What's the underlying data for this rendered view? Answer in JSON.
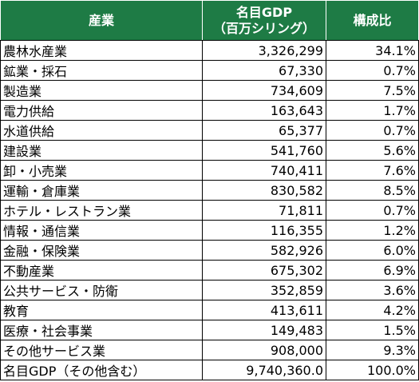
{
  "table": {
    "headers": {
      "industry": "産業",
      "gdp_line1": "名目GDP",
      "gdp_line2": "（百万シリング）",
      "share": "構成比"
    },
    "rows": [
      {
        "industry": "農林水産業",
        "gdp": "3,326,299",
        "share": "34.1%"
      },
      {
        "industry": "鉱業・採石",
        "gdp": "67,330",
        "share": "0.7%"
      },
      {
        "industry": "製造業",
        "gdp": "734,609",
        "share": "7.5%"
      },
      {
        "industry": "電力供給",
        "gdp": "163,643",
        "share": "1.7%"
      },
      {
        "industry": "水道供給",
        "gdp": "65,377",
        "share": "0.7%"
      },
      {
        "industry": "建設業",
        "gdp": "541,760",
        "share": "5.6%"
      },
      {
        "industry": "卸・小売業",
        "gdp": "740,411",
        "share": "7.6%"
      },
      {
        "industry": "運輸・倉庫業",
        "gdp": "830,582",
        "share": "8.5%"
      },
      {
        "industry": "ホテル・レストラン業",
        "gdp": "71,811",
        "share": "0.7%"
      },
      {
        "industry": "情報・通信業",
        "gdp": "116,355",
        "share": "1.2%"
      },
      {
        "industry": "金融・保険業",
        "gdp": "582,926",
        "share": "6.0%"
      },
      {
        "industry": "不動産業",
        "gdp": "675,302",
        "share": "6.9%"
      },
      {
        "industry": "公共サービス・防衛",
        "gdp": "352,859",
        "share": "3.6%"
      },
      {
        "industry": "教育",
        "gdp": "413,611",
        "share": "4.2%"
      },
      {
        "industry": "医療・社会事業",
        "gdp": "149,483",
        "share": "1.5%"
      },
      {
        "industry": "その他サービス業",
        "gdp": "908,000",
        "share": "9.3%"
      }
    ],
    "total": {
      "industry": "名目GDP（その他含む）",
      "gdp": "9,740,360.0",
      "share": "100.0%"
    }
  },
  "colors": {
    "header_bg": "#1e7b45",
    "header_text": "#ffffff"
  }
}
